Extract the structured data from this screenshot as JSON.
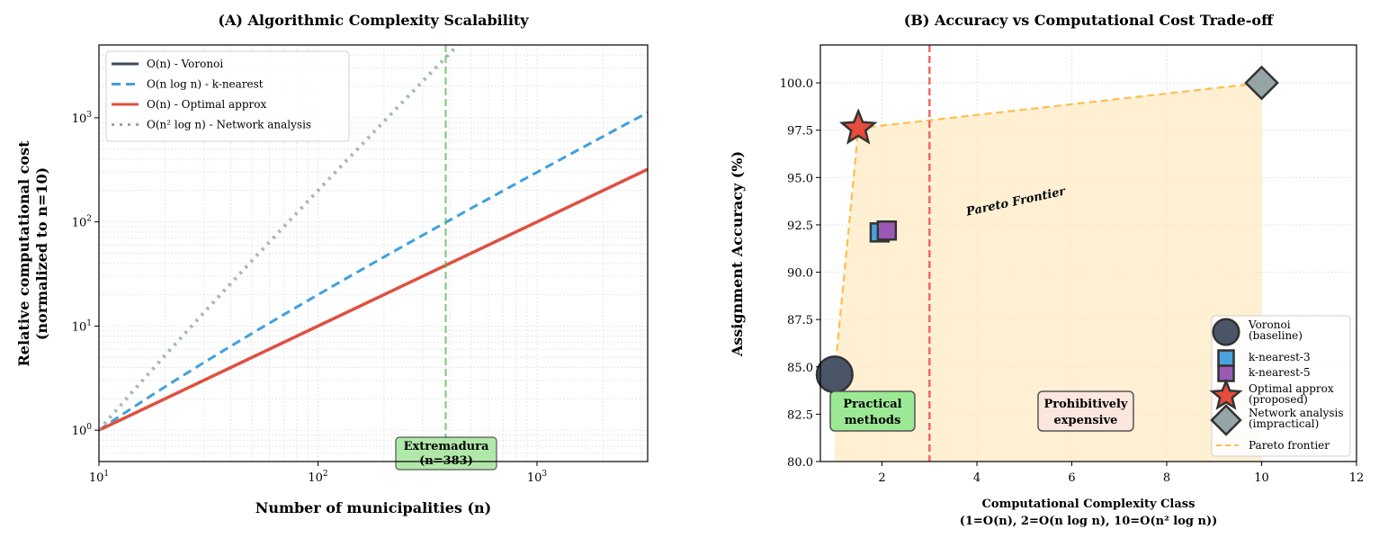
{
  "chart_data": [
    {
      "type": "line",
      "title": "(A) Algorithmic Complexity Scalability",
      "xlabel": "Number of municipalities (n)",
      "ylabel": [
        "Relative computational cost",
        "(normalized to n=10)"
      ],
      "xscale": "log",
      "yscale": "log",
      "xlim": [
        10,
        3200
      ],
      "ylim": [
        0.5,
        5000
      ],
      "xticks": [
        10,
        100,
        1000
      ],
      "xtick_labels": [
        "10^1",
        "10^2",
        "10^3"
      ],
      "yticks": [
        1,
        10,
        100,
        1000
      ],
      "ytick_labels": [
        "10^0",
        "10^1",
        "10^2",
        "10^3"
      ],
      "grid": true,
      "legend_position": "top-left",
      "series": [
        {
          "name": "O(n) - Voronoi",
          "formula": "n/10",
          "color": "#3d4a5c",
          "style": "solid"
        },
        {
          "name": "O(n log n) - k-nearest",
          "formula": "n log n / (10 log 10)",
          "color": "#3fa0e0",
          "style": "dashed"
        },
        {
          "name": "O(n) - Optimal approx",
          "formula": "n/10",
          "color": "#e05040",
          "style": "solid"
        },
        {
          "name": "O(n² log n) - Network analysis",
          "formula": "n² log n / (100 log 10)",
          "color": "#95a5a6",
          "style": "dotted"
        }
      ],
      "vline": {
        "x": 383,
        "color": "#5cb85c"
      },
      "annotation": [
        "Extremadura",
        "(n=383)"
      ]
    },
    {
      "type": "scatter",
      "title": "(B) Accuracy vs Computational Cost Trade-off",
      "xlabel": [
        "Computational Complexity Class",
        "(1=O(n), 2=O(n log n), 10=O(n² log n))"
      ],
      "ylabel": "Assignment Accuracy (%)",
      "xlim": [
        0.7,
        12
      ],
      "ylim": [
        80,
        102
      ],
      "xticks": [
        2,
        4,
        6,
        8,
        10,
        12
      ],
      "yticks": [
        80.0,
        82.5,
        85.0,
        87.5,
        90.0,
        92.5,
        95.0,
        97.5,
        100.0
      ],
      "grid": true,
      "legend_position": "bottom-right",
      "points": [
        {
          "name": "Voronoi (baseline)",
          "label": [
            "Voronoi",
            "(baseline)"
          ],
          "x": 1,
          "y": 84.6,
          "marker": "circle",
          "color": "#4a5568"
        },
        {
          "name": "k-nearest-3",
          "label": [
            "k-nearest-3"
          ],
          "x": 1.95,
          "y": 92.1,
          "marker": "square",
          "color": "#4aa3df"
        },
        {
          "name": "k-nearest-5",
          "label": [
            "k-nearest-5"
          ],
          "x": 2.1,
          "y": 92.2,
          "marker": "square",
          "color": "#9b59b6"
        },
        {
          "name": "Optimal approx (proposed)",
          "label": [
            "Optimal approx",
            "(proposed)"
          ],
          "x": 1.5,
          "y": 97.6,
          "marker": "star",
          "color": "#e74c3c"
        },
        {
          "name": "Network analysis (impractical)",
          "label": [
            "Network analysis",
            "(impractical)"
          ],
          "x": 10,
          "y": 100,
          "marker": "diamond",
          "color": "#95a5a6"
        }
      ],
      "frontier": {
        "name": "Pareto frontier",
        "x": [
          1,
          1.5,
          10
        ],
        "y": [
          84.6,
          97.6,
          100
        ],
        "color": "#ffbe4d"
      },
      "frontier_label": "Pareto Frontier",
      "vline": {
        "x": 3,
        "color": "#f06060"
      },
      "annotations": {
        "practical": [
          "Practical",
          "methods"
        ],
        "expensive": [
          "Prohibitively",
          "expensive"
        ]
      }
    }
  ]
}
